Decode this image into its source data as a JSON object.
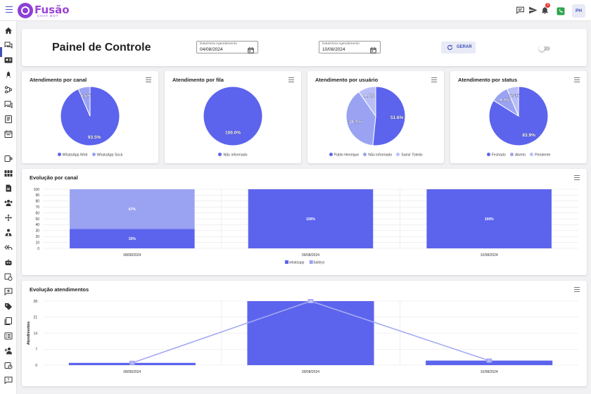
{
  "app": {
    "brand": "Fusão",
    "brand_sub": "CHAT BOT",
    "user_initials": "PH",
    "notification_count": "3"
  },
  "header": {
    "title": "Painel de Controle",
    "start_label": "Data/Hora Agendamento",
    "start_value": "04/08/2024",
    "end_label": "Data/Hora Agendamento",
    "end_value": "10/08/2024",
    "generate_label": "GERAR"
  },
  "icons": {
    "topbar": [
      "menu-icon",
      "chat-icon",
      "send-icon",
      "bell-icon",
      "whatsapp-icon"
    ],
    "sidebar": [
      "home-icon",
      "chat-bubbles-icon",
      "contact-card-icon",
      "rocket-icon",
      "flow-icon",
      "message-queue-icon",
      "document-icon",
      "calendar-icon",
      "devices-icon",
      "grid-icon",
      "file-icon",
      "users-icon",
      "move-icon",
      "user-tie-icon",
      "reply-all-icon",
      "robot-icon",
      "schedule-icon",
      "comment-add-icon",
      "tag-icon",
      "notes-icon",
      "list-icon",
      "user-add-icon",
      "clock-icon",
      "support-icon"
    ]
  },
  "accent": "#5c64ed",
  "colors": {
    "primary": "#5c64ed",
    "secondary": "#9aa3f2",
    "tertiary": "#b9bff6"
  },
  "pies": [
    {
      "title": "Atendimento por canal",
      "labels": [
        "WhatsApp Web",
        "WhatsApp Sock"
      ],
      "values": [
        93.5,
        6.5
      ],
      "colors": [
        "#5c64ed",
        "#9aa3f2"
      ]
    },
    {
      "title": "Atendimento por fila",
      "labels": [
        "Não informado"
      ],
      "values": [
        100.0
      ],
      "colors": [
        "#5c64ed"
      ]
    },
    {
      "title": "Atendimento por usuário",
      "labels": [
        "Pablo Henrique",
        "Não informado",
        "Samir Toledo"
      ],
      "values": [
        51.6,
        38.7,
        9.7
      ],
      "colors": [
        "#5c64ed",
        "#9aa3f2",
        "#b9bff6"
      ]
    },
    {
      "title": "Atendimento por status",
      "labels": [
        "Fechado",
        "Aberto",
        "Pendente"
      ],
      "values": [
        83.9,
        9.7,
        6.5
      ],
      "colors": [
        "#5c64ed",
        "#9aa3f2",
        "#b9bff6"
      ]
    }
  ],
  "chart_data": [
    {
      "type": "bar",
      "title": "Evolução por canal",
      "stacked": true,
      "categories": [
        "08/08/2024",
        "09/08/2024",
        "10/08/2024"
      ],
      "series": [
        {
          "name": "whatsapp",
          "values": [
            33,
            100,
            100
          ],
          "labels": [
            "33%",
            "100%",
            "100%"
          ],
          "color": "#5c64ed"
        },
        {
          "name": "baileys",
          "values": [
            67,
            0,
            0
          ],
          "labels": [
            "67%",
            "",
            ""
          ],
          "color": "#9aa3f2"
        }
      ],
      "yticks": [
        0,
        10,
        20,
        30,
        40,
        50,
        60,
        70,
        80,
        90,
        100
      ],
      "ylim": [
        0,
        100
      ],
      "legend": "bottom"
    },
    {
      "type": "bar",
      "title": "Evolução atendimentos",
      "ylabel": "Atendimentos",
      "categories": [
        "08/08/2024",
        "09/08/2024",
        "10/08/2024"
      ],
      "bar_values": [
        1,
        28,
        2
      ],
      "line_values": [
        1,
        28,
        2
      ],
      "point_labels": [
        "1",
        "28",
        "2"
      ],
      "yticks": [
        0,
        7,
        14,
        21,
        28
      ],
      "ylim": [
        0,
        28
      ]
    }
  ]
}
